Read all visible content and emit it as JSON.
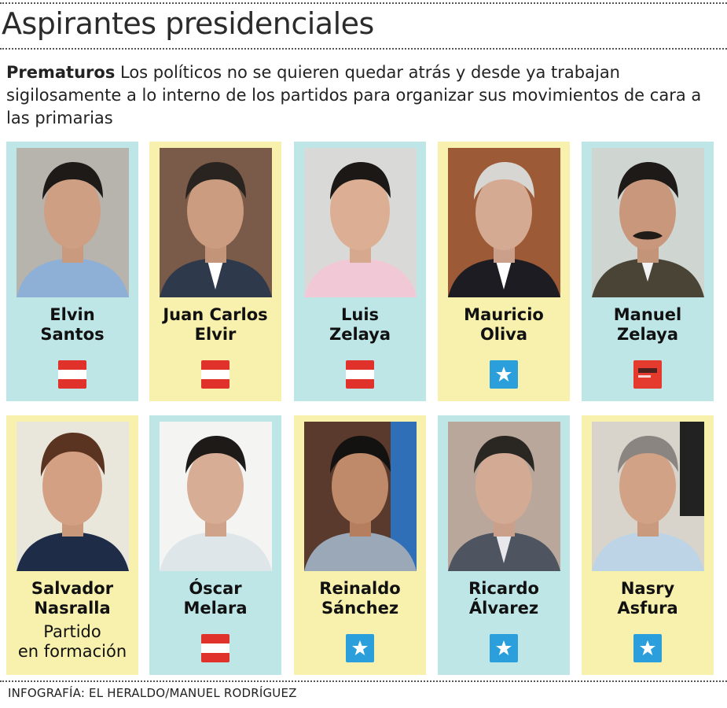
{
  "title": "Aspirantes presidenciales",
  "intro": {
    "lead": "Prematuros",
    "text": " Los políticos no se quieren quedar atrás y desde ya trabajan sigilosamente a lo interno de los partidos para organizar sus movimientos de cara a las primarias"
  },
  "colors": {
    "cyan": "#bfe6e6",
    "yellow": "#f7f1ad",
    "liberal_red": "#e0312b",
    "nacional_blue": "#2a9fdc",
    "libre_red": "#e43b2e"
  },
  "candidates": [
    {
      "first": "Elvin",
      "last": "Santos",
      "party_icon": "liberal-flag-icon"
    },
    {
      "first": "Juan Carlos",
      "last": "Elvir",
      "party_icon": "liberal-flag-icon"
    },
    {
      "first": "Luis",
      "last": "Zelaya",
      "party_icon": "liberal-flag-icon"
    },
    {
      "first": "Mauricio",
      "last": "Oliva",
      "party_icon": "nacional-flag-icon"
    },
    {
      "first": "Manuel",
      "last": "Zelaya",
      "party_icon": "libre-flag-icon"
    },
    {
      "first": "Salvador",
      "last": "Nasralla",
      "note1": "Partido",
      "note2": "en formación"
    },
    {
      "first": "Óscar",
      "last": "Melara",
      "party_icon": "liberal-flag-icon"
    },
    {
      "first": "Reinaldo",
      "last": "Sánchez",
      "party_icon": "nacional-flag-icon"
    },
    {
      "first": "Ricardo",
      "last": "Álvarez",
      "party_icon": "nacional-flag-icon"
    },
    {
      "first": "Nasry",
      "last": "Asfura",
      "party_icon": "nacional-flag-icon"
    }
  ],
  "credit": "INFOGRAFÍA: EL HERALDO/MANUEL RODRÍGUEZ"
}
